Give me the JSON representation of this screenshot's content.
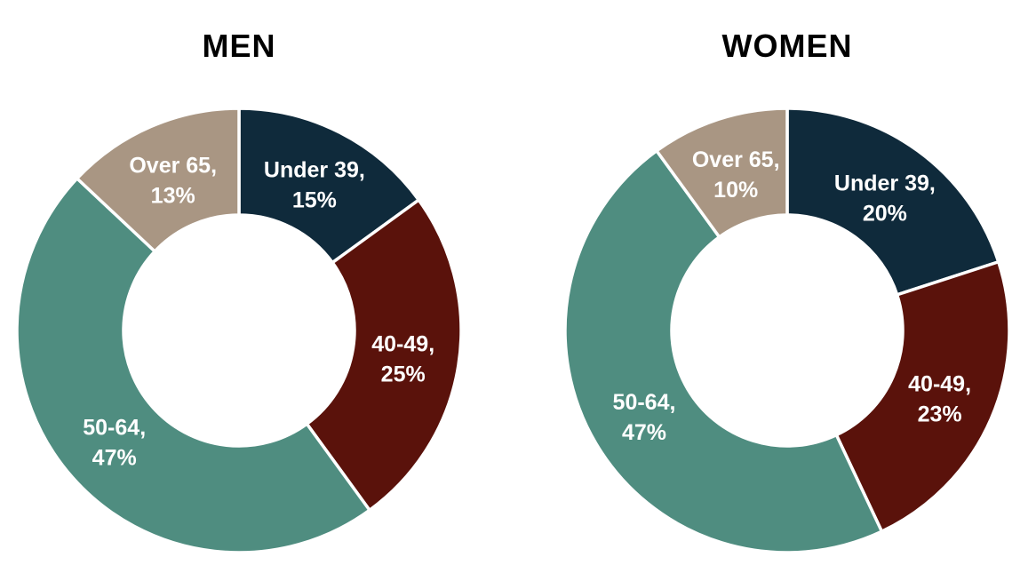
{
  "page": {
    "background": "#ffffff"
  },
  "colors": {
    "title_text": "#000000",
    "label_text": "#ffffff",
    "slice_divider": "#ffffff"
  },
  "chart_data": [
    {
      "type": "pie",
      "variant": "donut",
      "title": "MEN",
      "categories": [
        "Under 39",
        "40-49",
        "50-64",
        "Over 65"
      ],
      "values": [
        15,
        25,
        47,
        13
      ],
      "unit": "%",
      "colors": [
        "#0f2a3b",
        "#5a120b",
        "#4f8d80",
        "#a99683"
      ],
      "data_labels": [
        "Under 39, 15%",
        "40-49, 25%",
        "50-64, 47%",
        "Over 65, 13%"
      ],
      "start_angle_deg": 0,
      "direction": "clockwise",
      "hole_ratio": 0.52,
      "legend": "none"
    },
    {
      "type": "pie",
      "variant": "donut",
      "title": "WOMEN",
      "categories": [
        "Under 39",
        "40-49",
        "50-64",
        "Over 65"
      ],
      "values": [
        20,
        23,
        47,
        10
      ],
      "unit": "%",
      "colors": [
        "#0f2a3b",
        "#5a120b",
        "#4f8d80",
        "#a99683"
      ],
      "data_labels": [
        "Under 39, 20%",
        "40-49, 23%",
        "50-64, 47%",
        "Over 65, 10%"
      ],
      "start_angle_deg": 0,
      "direction": "clockwise",
      "hole_ratio": 0.52,
      "legend": "none"
    }
  ]
}
